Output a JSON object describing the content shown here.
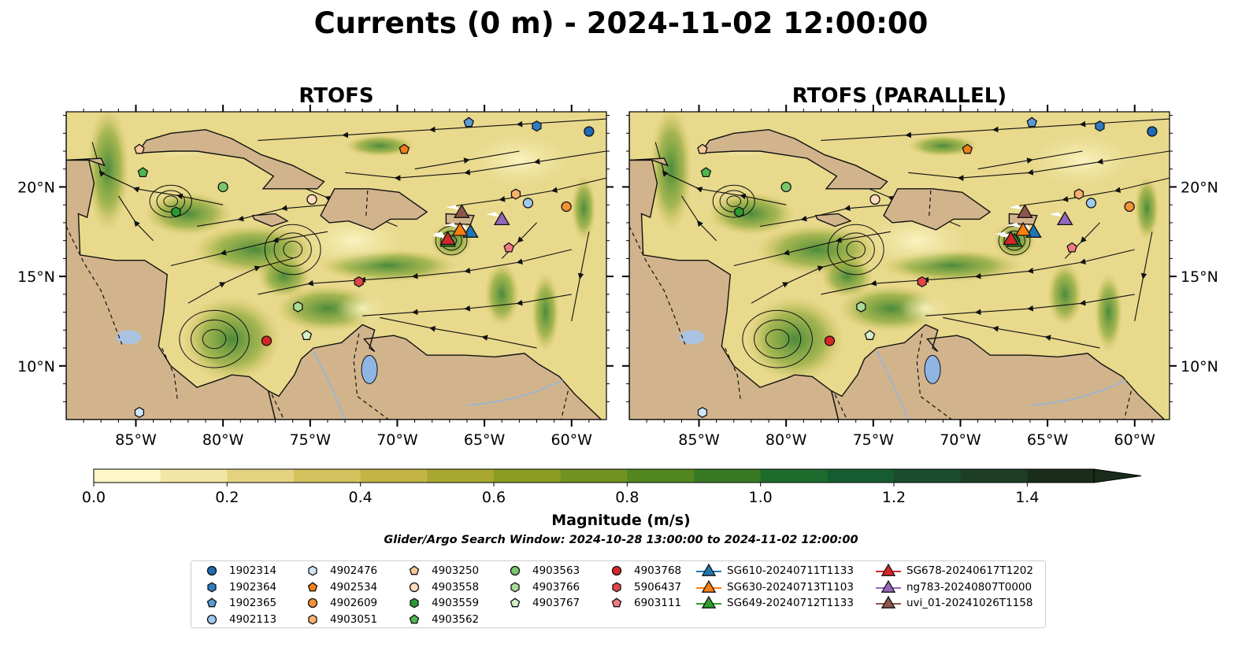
{
  "title": "Currents (0 m) - 2024-11-02 12:00:00",
  "panels": [
    {
      "title": "RTOFS"
    },
    {
      "title": "RTOFS (PARALLEL)"
    }
  ],
  "map": {
    "lon_ticks": [
      "85°W",
      "80°W",
      "75°W",
      "70°W",
      "65°W",
      "60°W"
    ],
    "lat_ticks": [
      "20°N",
      "15°N",
      "10°N"
    ]
  },
  "colorbar": {
    "label": "Magnitude (m/s)",
    "tick_labels": [
      "0.0",
      "0.2",
      "0.4",
      "0.6",
      "0.8",
      "1.0",
      "1.2",
      "1.4"
    ],
    "colors": [
      "#fdf6c6",
      "#f1e6a6",
      "#e3d37f",
      "#d4c25e",
      "#c2b546",
      "#a8a830",
      "#8c9c22",
      "#6f9220",
      "#52871f",
      "#387a24",
      "#1e6b2e",
      "#155d30",
      "#194d2d",
      "#1d3e25",
      "#1a2c1b"
    ]
  },
  "search_window": "Glider/Argo Search Window: 2024-10-28 13:00:00 to 2024-11-02 12:00:00",
  "legend": [
    {
      "label": "1902314",
      "symbol": "circle",
      "color": "#1f6bb5"
    },
    {
      "label": "1902364",
      "symbol": "hexagon",
      "color": "#2f7cc0"
    },
    {
      "label": "1902365",
      "symbol": "pentagon",
      "color": "#5a9bd5"
    },
    {
      "label": "4902113",
      "symbol": "circle",
      "color": "#9ec9ec"
    },
    {
      "label": "4902476",
      "symbol": "hexagon",
      "color": "#cfe5f7"
    },
    {
      "label": "4902534",
      "symbol": "pentagon",
      "color": "#f07f16"
    },
    {
      "label": "4902609",
      "symbol": "circle",
      "color": "#f39237"
    },
    {
      "label": "4903051",
      "symbol": "hexagon",
      "color": "#f8b16e"
    },
    {
      "label": "4903250",
      "symbol": "pentagon",
      "color": "#fac89a"
    },
    {
      "label": "4903558",
      "symbol": "circle",
      "color": "#fddcc0"
    },
    {
      "label": "4903559",
      "symbol": "hexagon",
      "color": "#2a9a33"
    },
    {
      "label": "4903562",
      "symbol": "pentagon",
      "color": "#4db84e"
    },
    {
      "label": "4903563",
      "symbol": "circle",
      "color": "#79c66b"
    },
    {
      "label": "4903766",
      "symbol": "hexagon",
      "color": "#a9dc97"
    },
    {
      "label": "4903767",
      "symbol": "pentagon",
      "color": "#d5f0c8"
    },
    {
      "label": "4903768",
      "symbol": "circle",
      "color": "#d62728"
    },
    {
      "label": "5906437",
      "symbol": "hexagon",
      "color": "#e1444a"
    },
    {
      "label": "6903111",
      "symbol": "pentagon",
      "color": "#f07a82"
    },
    {
      "label": "SG610-20240711T1133",
      "symbol": "triangle",
      "color": "#1f77b4"
    },
    {
      "label": "SG630-20240713T1103",
      "symbol": "triangle",
      "color": "#ff7f0e"
    },
    {
      "label": "SG649-20240712T1133",
      "symbol": "triangle",
      "color": "#2ca02c"
    },
    {
      "label": "SG678-20240617T1202",
      "symbol": "triangle",
      "color": "#d62728"
    },
    {
      "label": "ng783-20240807T0000",
      "symbol": "triangle",
      "color": "#9467bd"
    },
    {
      "label": "uvi_01-20241026T1158",
      "symbol": "triangle",
      "color": "#8c564b"
    }
  ]
}
